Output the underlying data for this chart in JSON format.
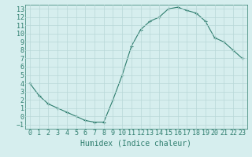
{
  "x": [
    0,
    1,
    2,
    3,
    4,
    5,
    6,
    7,
    8,
    9,
    10,
    11,
    12,
    13,
    14,
    15,
    16,
    17,
    18,
    19,
    20,
    21,
    22,
    23
  ],
  "y": [
    4,
    2.5,
    1.5,
    1,
    0.5,
    0,
    -0.5,
    -0.7,
    -0.7,
    2,
    5,
    8.5,
    10.5,
    11.5,
    12,
    13,
    13.2,
    12.8,
    12.5,
    11.5,
    9.5,
    9,
    8,
    7
  ],
  "line_color": "#2e7d6e",
  "marker": "+",
  "marker_size": 3,
  "bg_color": "#d6eeee",
  "grid_color": "#b8d8d8",
  "xlabel": "Humidex (Indice chaleur)",
  "xlabel_fontsize": 7,
  "tick_fontsize": 6,
  "xlim": [
    -0.5,
    23.5
  ],
  "ylim": [
    -1.5,
    13.5
  ],
  "yticks": [
    -1,
    0,
    1,
    2,
    3,
    4,
    5,
    6,
    7,
    8,
    9,
    10,
    11,
    12,
    13
  ],
  "xticks": [
    0,
    1,
    2,
    3,
    4,
    5,
    6,
    7,
    8,
    9,
    10,
    11,
    12,
    13,
    14,
    15,
    16,
    17,
    18,
    19,
    20,
    21,
    22,
    23
  ]
}
